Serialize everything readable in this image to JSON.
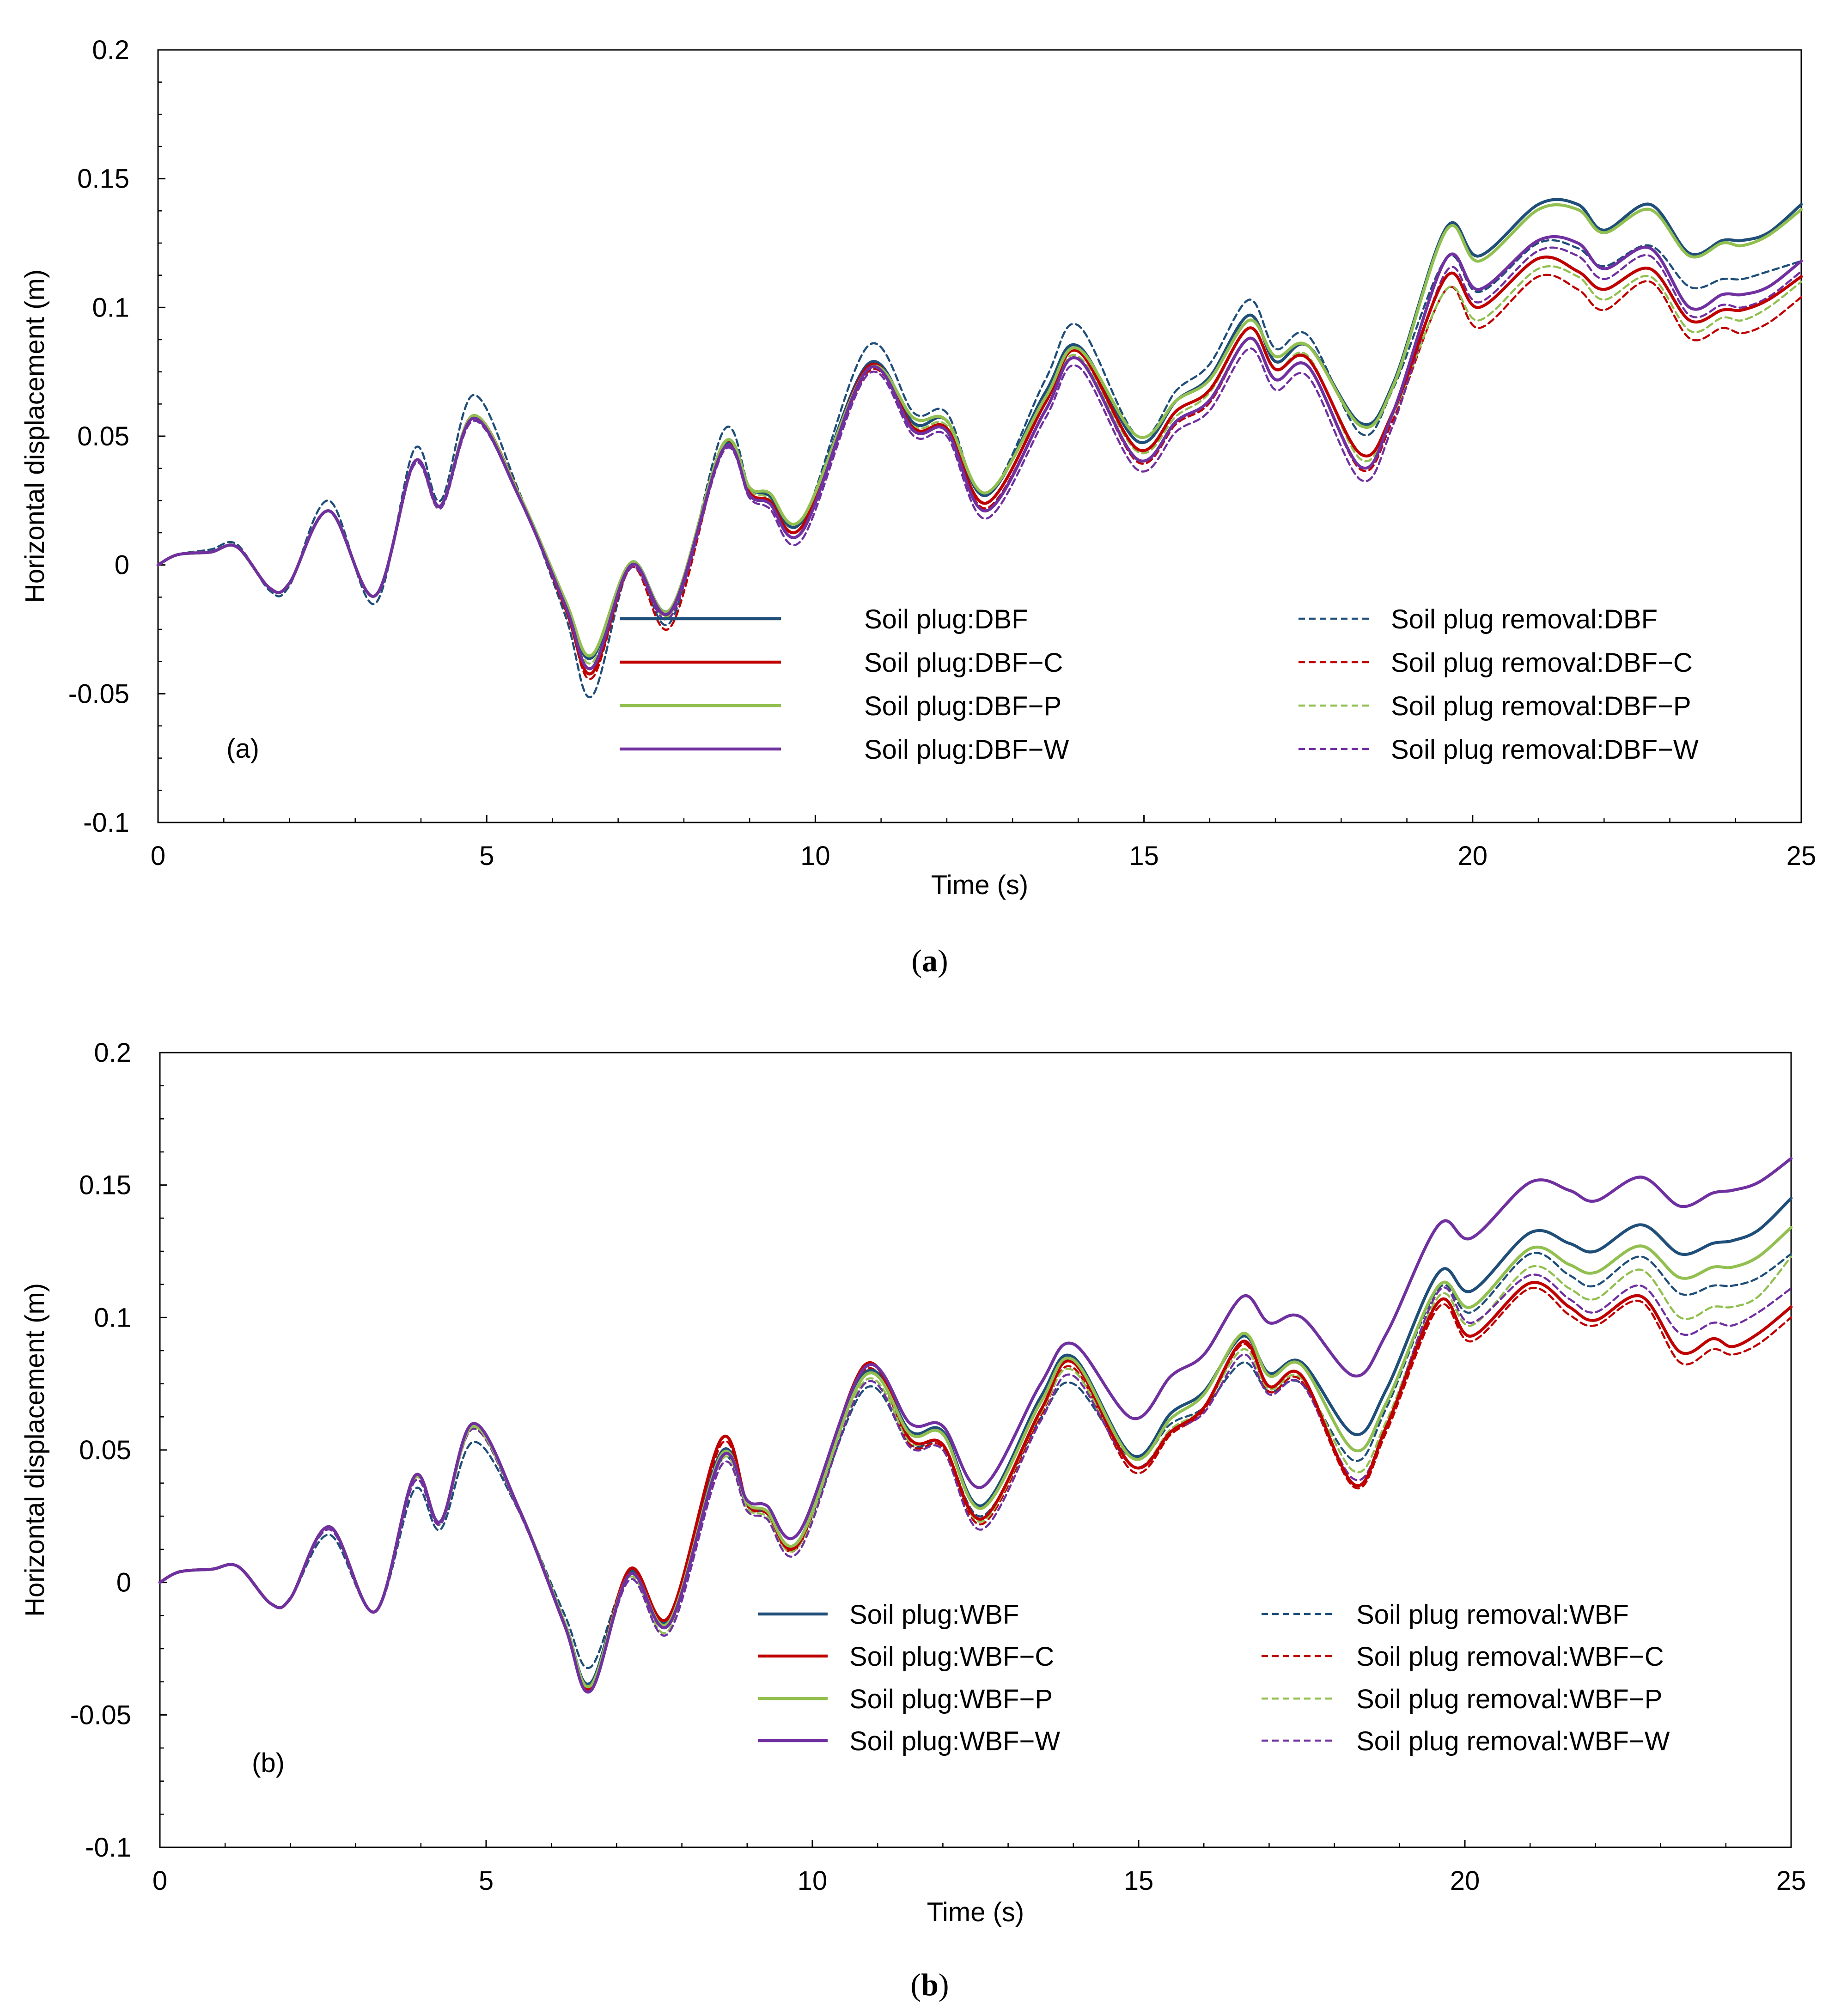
{
  "colors": {
    "DBF_WBF": "#1f4e79",
    "C": "#c00000",
    "P": "#92c050",
    "W": "#7030a0"
  },
  "captions": [
    {
      "open": "(",
      "letter": "a",
      "close": ")"
    },
    {
      "open": "(",
      "letter": "b",
      "close": ")"
    }
  ],
  "chart_data": [
    {
      "type": "line",
      "panel_label": "(a)",
      "xlabel": "Time (s)",
      "ylabel": "Horizontal displacement (m)",
      "xlim": [
        0,
        25
      ],
      "ylim": [
        -0.1,
        0.2
      ],
      "xticks": [
        0,
        5,
        10,
        15,
        20,
        25
      ],
      "yticks": [
        -0.1,
        -0.05,
        0,
        0.05,
        0.1,
        0.15,
        0.2
      ],
      "ytick_labels": [
        "-0.1",
        "-0.05",
        "0",
        "0.05",
        "0.1",
        "0.15",
        "0.2"
      ],
      "grid": false,
      "legend_position": "lower-right",
      "x": [
        0,
        0.3,
        0.8,
        1.2,
        1.7,
        2,
        2.6,
        3.3,
        3.9,
        4.3,
        4.8,
        5.5,
        6.2,
        6.6,
        7.2,
        7.8,
        8.6,
        9,
        9.3,
        9.8,
        10.8,
        11.5,
        12,
        12.6,
        13.5,
        14,
        14.9,
        15.5,
        16,
        16.6,
        17,
        17.5,
        18.3,
        18.8,
        19.6,
        20.1,
        21,
        21.6,
        22,
        22.7,
        23.3,
        23.8,
        24.1,
        24.5,
        25
      ],
      "series": [
        {
          "name": "Soil plug:DBF",
          "color_key": "DBF_WBF",
          "style": "solid",
          "values": [
            0,
            0.004,
            0.005,
            0.007,
            -0.009,
            -0.007,
            0.021,
            -0.012,
            0.04,
            0.023,
            0.058,
            0.027,
            -0.015,
            -0.036,
            0.001,
            -0.017,
            0.046,
            0.03,
            0.027,
            0.017,
            0.078,
            0.055,
            0.056,
            0.027,
            0.067,
            0.085,
            0.048,
            0.064,
            0.073,
            0.097,
            0.079,
            0.085,
            0.055,
            0.071,
            0.131,
            0.12,
            0.14,
            0.14,
            0.13,
            0.14,
            0.121,
            0.126,
            0.126,
            0.129,
            0.14
          ]
        },
        {
          "name": "Soil plug:DBF−C",
          "color_key": "C",
          "style": "solid",
          "values": [
            0,
            0.004,
            0.005,
            0.007,
            -0.009,
            -0.007,
            0.021,
            -0.012,
            0.04,
            0.023,
            0.058,
            0.027,
            -0.017,
            -0.042,
            0,
            -0.018,
            0.047,
            0.028,
            0.025,
            0.015,
            0.077,
            0.053,
            0.053,
            0.024,
            0.063,
            0.083,
            0.045,
            0.06,
            0.068,
            0.092,
            0.076,
            0.08,
            0.043,
            0.06,
            0.112,
            0.1,
            0.119,
            0.114,
            0.107,
            0.115,
            0.095,
            0.099,
            0.099,
            0.103,
            0.112
          ]
        },
        {
          "name": "Soil plug:DBF−P",
          "color_key": "P",
          "style": "solid",
          "values": [
            0,
            0.004,
            0.005,
            0.007,
            -0.009,
            -0.007,
            0.021,
            -0.012,
            0.04,
            0.023,
            0.058,
            0.027,
            -0.014,
            -0.035,
            0.001,
            -0.017,
            0.047,
            0.03,
            0.028,
            0.018,
            0.076,
            0.057,
            0.056,
            0.028,
            0.065,
            0.084,
            0.05,
            0.064,
            0.072,
            0.095,
            0.081,
            0.085,
            0.054,
            0.07,
            0.13,
            0.118,
            0.138,
            0.138,
            0.129,
            0.138,
            0.12,
            0.125,
            0.124,
            0.128,
            0.138
          ]
        },
        {
          "name": "Soil plug:DBF−W",
          "color_key": "W",
          "style": "solid",
          "values": [
            0,
            0.004,
            0.005,
            0.007,
            -0.009,
            -0.007,
            0.021,
            -0.012,
            0.04,
            0.023,
            0.057,
            0.026,
            -0.016,
            -0.04,
            0,
            -0.018,
            0.045,
            0.027,
            0.024,
            0.013,
            0.076,
            0.052,
            0.052,
            0.021,
            0.06,
            0.08,
            0.041,
            0.056,
            0.064,
            0.088,
            0.072,
            0.077,
            0.038,
            0.06,
            0.119,
            0.107,
            0.126,
            0.125,
            0.115,
            0.123,
            0.1,
            0.105,
            0.105,
            0.108,
            0.118
          ]
        },
        {
          "name": "Soil plug removal:DBF",
          "color_key": "DBF_WBF",
          "style": "dashed",
          "values": [
            0,
            0.004,
            0.006,
            0.008,
            -0.01,
            -0.008,
            0.025,
            -0.015,
            0.045,
            0.025,
            0.066,
            0.028,
            -0.02,
            -0.051,
            0,
            -0.022,
            0.052,
            0.03,
            0.028,
            0.017,
            0.085,
            0.059,
            0.059,
            0.027,
            0.072,
            0.093,
            0.05,
            0.068,
            0.078,
            0.103,
            0.084,
            0.089,
            0.051,
            0.069,
            0.119,
            0.106,
            0.125,
            0.123,
            0.116,
            0.124,
            0.108,
            0.111,
            0.111,
            0.114,
            0.118
          ]
        },
        {
          "name": "Soil plug removal:DBF−C",
          "color_key": "C",
          "style": "dashed",
          "values": [
            0,
            0.004,
            0.005,
            0.007,
            -0.009,
            -0.007,
            0.021,
            -0.012,
            0.04,
            0.023,
            0.058,
            0.027,
            -0.017,
            -0.044,
            -0.001,
            -0.024,
            0.046,
            0.027,
            0.024,
            0.013,
            0.075,
            0.053,
            0.052,
            0.022,
            0.06,
            0.08,
            0.04,
            0.055,
            0.063,
            0.088,
            0.072,
            0.077,
            0.037,
            0.057,
            0.107,
            0.092,
            0.112,
            0.107,
            0.099,
            0.11,
            0.088,
            0.092,
            0.09,
            0.094,
            0.104
          ]
        },
        {
          "name": "Soil plug removal:DBF−P",
          "color_key": "P",
          "style": "dashed",
          "values": [
            0,
            0.004,
            0.005,
            0.007,
            -0.009,
            -0.007,
            0.021,
            -0.012,
            0.04,
            0.023,
            0.058,
            0.027,
            -0.015,
            -0.038,
            0,
            -0.019,
            0.046,
            0.029,
            0.026,
            0.015,
            0.077,
            0.054,
            0.054,
            0.024,
            0.063,
            0.081,
            0.044,
            0.058,
            0.067,
            0.092,
            0.076,
            0.081,
            0.041,
            0.059,
            0.107,
            0.095,
            0.115,
            0.112,
            0.103,
            0.112,
            0.091,
            0.096,
            0.095,
            0.1,
            0.11
          ]
        },
        {
          "name": "Soil plug removal:DBF−W",
          "color_key": "W",
          "style": "dashed",
          "values": [
            0,
            0.004,
            0.005,
            0.007,
            -0.009,
            -0.007,
            0.021,
            -0.012,
            0.039,
            0.022,
            0.056,
            0.026,
            -0.016,
            -0.042,
            -0.001,
            -0.02,
            0.044,
            0.026,
            0.022,
            0.01,
            0.074,
            0.05,
            0.05,
            0.018,
            0.057,
            0.077,
            0.037,
            0.052,
            0.06,
            0.084,
            0.068,
            0.073,
            0.033,
            0.055,
            0.114,
            0.102,
            0.122,
            0.12,
            0.111,
            0.12,
            0.097,
            0.101,
            0.1,
            0.104,
            0.114
          ]
        }
      ]
    },
    {
      "type": "line",
      "panel_label": "(b)",
      "xlabel": "Time (s)",
      "ylabel": "Horizontal displacement (m)",
      "xlim": [
        0,
        25
      ],
      "ylim": [
        -0.1,
        0.2
      ],
      "xticks": [
        0,
        5,
        10,
        15,
        20,
        25
      ],
      "yticks": [
        -0.1,
        -0.05,
        0,
        0.05,
        0.1,
        0.15,
        0.2
      ],
      "ytick_labels": [
        "-0.1",
        "-0.05",
        "0",
        "0.05",
        "0.1",
        "0.15",
        "0.2"
      ],
      "grid": false,
      "legend_position": "lower-right",
      "x": [
        0,
        0.3,
        0.8,
        1.2,
        1.7,
        2,
        2.6,
        3.3,
        3.9,
        4.3,
        4.8,
        5.5,
        6.2,
        6.6,
        7.2,
        7.8,
        8.6,
        9,
        9.3,
        9.8,
        10.8,
        11.5,
        12,
        12.6,
        13.5,
        14,
        14.9,
        15.5,
        16,
        16.6,
        17,
        17.5,
        18.3,
        18.8,
        19.6,
        20.1,
        21,
        21.6,
        22,
        22.7,
        23.3,
        23.8,
        24.1,
        24.5,
        25
      ],
      "series": [
        {
          "name": "Soil plug:WBF",
          "color_key": "DBF_WBF",
          "style": "solid",
          "values": [
            0,
            0.004,
            0.005,
            0.006,
            -0.008,
            -0.006,
            0.021,
            -0.011,
            0.04,
            0.023,
            0.059,
            0.028,
            -0.015,
            -0.038,
            0.004,
            -0.014,
            0.049,
            0.03,
            0.027,
            0.016,
            0.079,
            0.057,
            0.057,
            0.029,
            0.07,
            0.085,
            0.048,
            0.064,
            0.072,
            0.093,
            0.079,
            0.083,
            0.056,
            0.073,
            0.117,
            0.11,
            0.132,
            0.128,
            0.125,
            0.135,
            0.124,
            0.128,
            0.129,
            0.133,
            0.145
          ]
        },
        {
          "name": "Soil plug:WBF−C",
          "color_key": "C",
          "style": "solid",
          "values": [
            0,
            0.004,
            0.005,
            0.006,
            -0.008,
            -0.006,
            0.021,
            -0.011,
            0.04,
            0.023,
            0.059,
            0.028,
            -0.016,
            -0.04,
            0.005,
            -0.013,
            0.054,
            0.03,
            0.027,
            0.015,
            0.082,
            0.054,
            0.052,
            0.024,
            0.065,
            0.083,
            0.044,
            0.057,
            0.066,
            0.091,
            0.074,
            0.078,
            0.037,
            0.059,
            0.106,
            0.093,
            0.113,
            0.104,
            0.099,
            0.108,
            0.087,
            0.092,
            0.089,
            0.094,
            0.104
          ]
        },
        {
          "name": "Soil plug:WBF−P",
          "color_key": "P",
          "style": "solid",
          "values": [
            0,
            0.004,
            0.005,
            0.006,
            -0.008,
            -0.006,
            0.021,
            -0.011,
            0.04,
            0.023,
            0.059,
            0.028,
            -0.015,
            -0.039,
            0.003,
            -0.015,
            0.048,
            0.03,
            0.027,
            0.016,
            0.078,
            0.056,
            0.056,
            0.028,
            0.068,
            0.084,
            0.047,
            0.062,
            0.071,
            0.094,
            0.078,
            0.082,
            0.05,
            0.068,
            0.112,
            0.104,
            0.126,
            0.12,
            0.117,
            0.127,
            0.115,
            0.119,
            0.119,
            0.123,
            0.134
          ]
        },
        {
          "name": "Soil plug:WBF−W",
          "color_key": "W",
          "style": "solid",
          "values": [
            0,
            0.004,
            0.005,
            0.006,
            -0.008,
            -0.006,
            0.021,
            -0.011,
            0.04,
            0.023,
            0.06,
            0.028,
            -0.016,
            -0.041,
            0.003,
            -0.016,
            0.047,
            0.031,
            0.029,
            0.019,
            0.081,
            0.06,
            0.059,
            0.036,
            0.075,
            0.09,
            0.062,
            0.078,
            0.086,
            0.108,
            0.098,
            0.1,
            0.078,
            0.094,
            0.135,
            0.13,
            0.151,
            0.148,
            0.144,
            0.153,
            0.142,
            0.147,
            0.148,
            0.151,
            0.16
          ]
        },
        {
          "name": "Soil plug removal:WBF",
          "color_key": "DBF_WBF",
          "style": "dashed",
          "values": [
            0,
            0.004,
            0.005,
            0.006,
            -0.008,
            -0.006,
            0.018,
            -0.011,
            0.035,
            0.02,
            0.053,
            0.027,
            -0.012,
            -0.032,
            0.003,
            -0.014,
            0.046,
            0.029,
            0.026,
            0.015,
            0.073,
            0.052,
            0.052,
            0.025,
            0.062,
            0.075,
            0.047,
            0.06,
            0.066,
            0.083,
            0.072,
            0.075,
            0.046,
            0.066,
            0.111,
            0.102,
            0.124,
            0.116,
            0.112,
            0.123,
            0.109,
            0.112,
            0.112,
            0.115,
            0.124
          ]
        },
        {
          "name": "Soil plug removal:WBF−C",
          "color_key": "C",
          "style": "dashed",
          "values": [
            0,
            0.004,
            0.005,
            0.006,
            -0.008,
            -0.006,
            0.021,
            -0.011,
            0.04,
            0.023,
            0.059,
            0.028,
            -0.016,
            -0.041,
            0.004,
            -0.016,
            0.052,
            0.029,
            0.026,
            0.014,
            0.08,
            0.052,
            0.051,
            0.022,
            0.063,
            0.081,
            0.042,
            0.056,
            0.065,
            0.09,
            0.072,
            0.076,
            0.036,
            0.057,
            0.104,
            0.091,
            0.111,
            0.101,
            0.097,
            0.106,
            0.083,
            0.088,
            0.086,
            0.09,
            0.1
          ]
        },
        {
          "name": "Soil plug removal:WBF−P",
          "color_key": "P",
          "style": "dashed",
          "values": [
            0,
            0.004,
            0.005,
            0.006,
            -0.008,
            -0.006,
            0.021,
            -0.011,
            0.039,
            0.022,
            0.058,
            0.027,
            -0.015,
            -0.038,
            0.002,
            -0.018,
            0.046,
            0.028,
            0.025,
            0.014,
            0.076,
            0.053,
            0.052,
            0.023,
            0.064,
            0.08,
            0.044,
            0.058,
            0.066,
            0.088,
            0.073,
            0.077,
            0.042,
            0.061,
            0.108,
            0.097,
            0.119,
            0.111,
            0.107,
            0.118,
            0.1,
            0.104,
            0.104,
            0.108,
            0.123
          ]
        },
        {
          "name": "Soil plug removal:WBF−W",
          "color_key": "W",
          "style": "dashed",
          "values": [
            0,
            0.004,
            0.005,
            0.006,
            -0.008,
            -0.006,
            0.02,
            -0.011,
            0.038,
            0.022,
            0.058,
            0.027,
            -0.015,
            -0.04,
            0.001,
            -0.019,
            0.044,
            0.027,
            0.024,
            0.012,
            0.075,
            0.051,
            0.05,
            0.02,
            0.061,
            0.078,
            0.044,
            0.057,
            0.064,
            0.086,
            0.071,
            0.075,
            0.039,
            0.059,
            0.11,
            0.098,
            0.116,
            0.107,
            0.102,
            0.112,
            0.094,
            0.098,
            0.097,
            0.102,
            0.111
          ]
        }
      ]
    }
  ]
}
